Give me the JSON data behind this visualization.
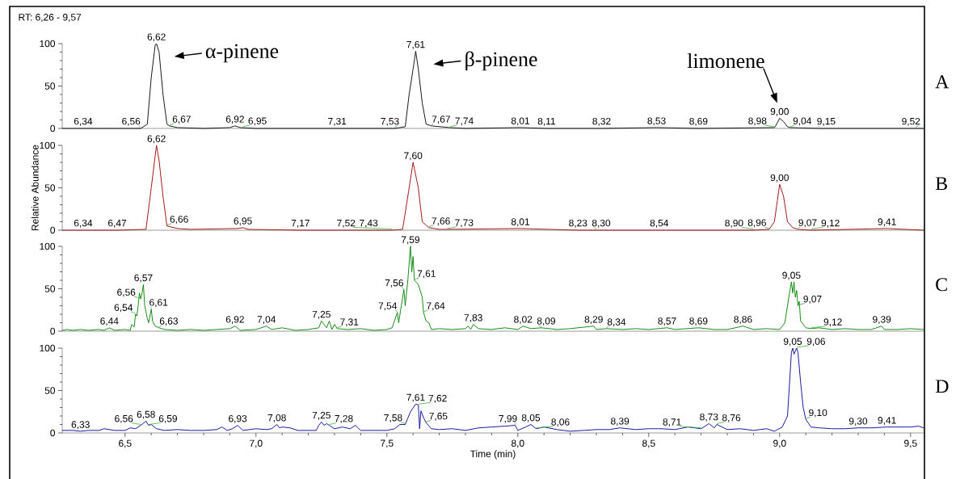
{
  "chart_data": [
    {
      "type": "line",
      "subtitle": "RT: 6,26 - 9,57",
      "color": "#000000",
      "xlim": [
        6.26,
        9.55
      ],
      "ylim": [
        0,
        100
      ],
      "yticks": [
        0,
        50,
        100
      ],
      "tick_labels": "y",
      "x": [
        6.26,
        6.34,
        6.5,
        6.56,
        6.585,
        6.6,
        6.615,
        6.62,
        6.63,
        6.645,
        6.66,
        6.67,
        6.7,
        6.8,
        6.9,
        6.92,
        6.94,
        7.0,
        7.31,
        7.53,
        7.57,
        7.585,
        7.6,
        7.61,
        7.62,
        7.635,
        7.65,
        7.67,
        7.74,
        7.8,
        8.01,
        8.11,
        8.32,
        8.53,
        8.69,
        8.98,
        8.985,
        9.0,
        9.015,
        9.03,
        9.04,
        9.15,
        9.52,
        9.55
      ],
      "values": [
        0,
        0,
        0,
        0,
        5,
        60,
        98,
        100,
        90,
        40,
        5,
        3,
        1,
        0,
        1,
        3,
        1,
        0,
        0,
        0,
        2,
        40,
        70,
        91,
        70,
        30,
        5,
        3,
        1,
        0,
        1,
        0,
        0,
        1,
        0,
        1,
        3,
        12,
        8,
        2,
        1,
        0,
        0,
        0
      ],
      "annotations": [
        "A",
        {
          "text": "α-pinene",
          "x": 6.62,
          "y": 100
        },
        {
          "text": "β-pinene",
          "x": 7.61,
          "y": 91
        },
        {
          "text": "limonene",
          "x": 9.0,
          "y": 12
        },
        {
          "text": "6,34",
          "x": 6.34,
          "y": 0.5
        },
        {
          "text": "6,56",
          "x": 6.56,
          "y": 0.5
        },
        {
          "text": "6,62",
          "x": 6.62,
          "y": 100
        },
        {
          "text": "6,67",
          "x": 6.67,
          "y": 3
        },
        {
          "text": "6,92",
          "x": 6.92,
          "y": 3
        },
        {
          "text": "6,95",
          "x": 6.95,
          "y": 1
        },
        {
          "text": "7,31",
          "x": 7.31,
          "y": 0.5
        },
        {
          "text": "7,53",
          "x": 7.53,
          "y": 0.5
        },
        {
          "text": "7,61",
          "x": 7.61,
          "y": 91
        },
        {
          "text": "7,67",
          "x": 7.67,
          "y": 3
        },
        {
          "text": "7,74",
          "x": 7.74,
          "y": 1
        },
        {
          "text": "8,01",
          "x": 8.01,
          "y": 1
        },
        {
          "text": "8,11",
          "x": 8.11,
          "y": 0.5
        },
        {
          "text": "8,32",
          "x": 8.32,
          "y": 0.5
        },
        {
          "text": "8,53",
          "x": 8.53,
          "y": 1
        },
        {
          "text": "8,69",
          "x": 8.69,
          "y": 0.5
        },
        {
          "text": "8,98",
          "x": 8.98,
          "y": 1
        },
        {
          "text": "9,00",
          "x": 9.0,
          "y": 12
        },
        {
          "text": "9,04",
          "x": 9.04,
          "y": 1
        },
        {
          "text": "9,15",
          "x": 9.15,
          "y": 0.5
        },
        {
          "text": "9,52",
          "x": 9.52,
          "y": 0.5
        }
      ]
    },
    {
      "type": "line",
      "ylabel": "Relative Abundance",
      "color": "#990000",
      "xlim": [
        6.26,
        9.55
      ],
      "ylim": [
        0,
        100
      ],
      "yticks": [
        0,
        50,
        100
      ],
      "tick_labels": "y",
      "x": [
        6.26,
        6.47,
        6.58,
        6.6,
        6.62,
        6.63,
        6.645,
        6.66,
        6.7,
        6.75,
        6.93,
        6.95,
        6.97,
        7.17,
        7.43,
        7.52,
        7.56,
        7.58,
        7.6,
        7.62,
        7.635,
        7.66,
        7.7,
        7.73,
        8.01,
        8.23,
        8.3,
        8.54,
        8.9,
        8.96,
        8.98,
        9.0,
        9.015,
        9.03,
        9.05,
        9.07,
        9.12,
        9.41,
        9.55
      ],
      "values": [
        0,
        0,
        1,
        50,
        100,
        82,
        40,
        5,
        2,
        1,
        2,
        3,
        1,
        0,
        0,
        0,
        1,
        40,
        80,
        50,
        10,
        3,
        1,
        1,
        2,
        0,
        0,
        0,
        0,
        1,
        10,
        54,
        40,
        10,
        3,
        1,
        0,
        2,
        0
      ],
      "annotations": [
        "B",
        {
          "text": "6,34",
          "x": 6.34,
          "y": 0.5
        },
        {
          "text": "6,47",
          "x": 6.47,
          "y": 0.5
        },
        {
          "text": "6,62",
          "x": 6.62,
          "y": 100
        },
        {
          "text": "6,66",
          "x": 6.66,
          "y": 5
        },
        {
          "text": "6,95",
          "x": 6.95,
          "y": 3
        },
        {
          "text": "7,17",
          "x": 7.17,
          "y": 0.5
        },
        {
          "text": "7,43",
          "x": 7.43,
          "y": 0.5
        },
        {
          "text": "7,52",
          "x": 7.52,
          "y": 0.5
        },
        {
          "text": "7,60",
          "x": 7.6,
          "y": 80
        },
        {
          "text": "7,66",
          "x": 7.66,
          "y": 3
        },
        {
          "text": "7,73",
          "x": 7.73,
          "y": 1
        },
        {
          "text": "8,01",
          "x": 8.01,
          "y": 2
        },
        {
          "text": "8,23",
          "x": 8.23,
          "y": 0.5
        },
        {
          "text": "8,30",
          "x": 8.3,
          "y": 0.5
        },
        {
          "text": "8,54",
          "x": 8.54,
          "y": 0.5
        },
        {
          "text": "8,90",
          "x": 8.9,
          "y": 0.5
        },
        {
          "text": "8,96",
          "x": 8.96,
          "y": 1
        },
        {
          "text": "9,00",
          "x": 9.0,
          "y": 54
        },
        {
          "text": "9,07",
          "x": 9.07,
          "y": 1
        },
        {
          "text": "9,12",
          "x": 9.12,
          "y": 0.5
        },
        {
          "text": "9,41",
          "x": 9.41,
          "y": 2
        }
      ]
    },
    {
      "type": "line",
      "color": "#008000",
      "xlim": [
        6.26,
        9.55
      ],
      "ylim": [
        0,
        100
      ],
      "yticks": [
        0,
        50,
        100
      ],
      "tick_labels": "y",
      "x": [
        6.26,
        6.28,
        6.3,
        6.33,
        6.36,
        6.4,
        6.42,
        6.44,
        6.46,
        6.5,
        6.52,
        6.525,
        6.535,
        6.54,
        6.545,
        6.55,
        6.555,
        6.56,
        6.565,
        6.57,
        6.575,
        6.585,
        6.59,
        6.6,
        6.605,
        6.615,
        6.63,
        6.65,
        6.7,
        6.75,
        6.8,
        6.85,
        6.9,
        6.92,
        6.94,
        7.0,
        7.04,
        7.06,
        7.1,
        7.15,
        7.2,
        7.24,
        7.25,
        7.27,
        7.28,
        7.29,
        7.3,
        7.31,
        7.35,
        7.4,
        7.45,
        7.5,
        7.52,
        7.54,
        7.545,
        7.555,
        7.565,
        7.57,
        7.58,
        7.59,
        7.595,
        7.6,
        7.605,
        7.62,
        7.635,
        7.64,
        7.65,
        7.66,
        7.67,
        7.7,
        7.75,
        7.8,
        7.81,
        7.82,
        7.83,
        7.85,
        7.9,
        7.95,
        8.0,
        8.02,
        8.05,
        8.09,
        8.15,
        8.2,
        8.29,
        8.3,
        8.34,
        8.4,
        8.45,
        8.5,
        8.57,
        8.6,
        8.69,
        8.75,
        8.8,
        8.86,
        8.9,
        8.95,
        9.0,
        9.02,
        9.035,
        9.045,
        9.05,
        9.055,
        9.06,
        9.065,
        9.07,
        9.075,
        9.08,
        9.09,
        9.1,
        9.12,
        9.15,
        9.2,
        9.25,
        9.3,
        9.35,
        9.39,
        9.4,
        9.45,
        9.5,
        9.55
      ],
      "values": [
        1,
        2,
        1,
        2,
        1,
        2,
        1,
        4,
        1,
        2,
        1,
        8,
        5,
        20,
        18,
        30,
        45,
        38,
        45,
        55,
        30,
        15,
        10,
        26,
        12,
        6,
        4,
        2,
        1,
        2,
        1,
        2,
        3,
        6,
        1,
        2,
        6,
        2,
        4,
        1,
        2,
        4,
        12,
        4,
        12,
        2,
        8,
        3,
        2,
        3,
        1,
        2,
        4,
        22,
        10,
        30,
        49,
        30,
        60,
        100,
        70,
        88,
        60,
        55,
        40,
        22,
        12,
        10,
        2,
        3,
        2,
        3,
        6,
        2,
        8,
        3,
        2,
        4,
        2,
        6,
        3,
        4,
        2,
        3,
        6,
        2,
        3,
        2,
        3,
        2,
        4,
        2,
        4,
        2,
        2,
        6,
        2,
        3,
        2,
        10,
        40,
        58,
        45,
        58,
        40,
        48,
        30,
        35,
        12,
        8,
        4,
        3,
        4,
        2,
        3,
        2,
        2,
        6,
        2,
        2,
        3,
        2
      ],
      "annotations": [
        "C",
        {
          "text": "6,44",
          "x": 6.44,
          "y": 4
        },
        {
          "text": "6,54",
          "x": 6.54,
          "y": 20
        },
        {
          "text": "6,56",
          "x": 6.56,
          "y": 38
        },
        {
          "text": "6,57",
          "x": 6.57,
          "y": 55
        },
        {
          "text": "6,61",
          "x": 6.6,
          "y": 26
        },
        {
          "text": "6,63",
          "x": 6.63,
          "y": 4
        },
        {
          "text": "6,92",
          "x": 6.92,
          "y": 6
        },
        {
          "text": "7,04",
          "x": 7.04,
          "y": 6
        },
        {
          "text": "7,25",
          "x": 7.25,
          "y": 12
        },
        {
          "text": "7,31",
          "x": 7.31,
          "y": 3
        },
        {
          "text": "7,54",
          "x": 7.54,
          "y": 22
        },
        {
          "text": "7,56",
          "x": 7.565,
          "y": 49
        },
        {
          "text": "7,59",
          "x": 7.59,
          "y": 100
        },
        {
          "text": "7,61",
          "x": 7.605,
          "y": 60
        },
        {
          "text": "7,64",
          "x": 7.64,
          "y": 22
        },
        {
          "text": "7,83",
          "x": 7.83,
          "y": 8
        },
        {
          "text": "8,02",
          "x": 8.02,
          "y": 6
        },
        {
          "text": "8,09",
          "x": 8.09,
          "y": 4
        },
        {
          "text": "8,29",
          "x": 8.29,
          "y": 6
        },
        {
          "text": "8,34",
          "x": 8.34,
          "y": 3
        },
        {
          "text": "8,57",
          "x": 8.57,
          "y": 4
        },
        {
          "text": "8,69",
          "x": 8.69,
          "y": 4
        },
        {
          "text": "8,86",
          "x": 8.86,
          "y": 6
        },
        {
          "text": "9,05",
          "x": 9.045,
          "y": 58
        },
        {
          "text": "9,07",
          "x": 9.07,
          "y": 30
        },
        {
          "text": "9,12",
          "x": 9.12,
          "y": 3
        },
        {
          "text": "9,39",
          "x": 9.39,
          "y": 6
        }
      ]
    },
    {
      "type": "line",
      "xlabel": "Time (min)",
      "color": "#000099",
      "xlim": [
        6.26,
        9.55
      ],
      "ylim": [
        0,
        100
      ],
      "yticks": [
        0,
        50,
        100
      ],
      "xticks": [
        {
          "value": 6.5,
          "label": "6,5"
        },
        {
          "value": 7.0,
          "label": "7,0"
        },
        {
          "value": 7.5,
          "label": "7,5"
        },
        {
          "value": 8.0,
          "label": "8,0"
        },
        {
          "value": 8.5,
          "label": "8,5"
        },
        {
          "value": 9.0,
          "label": "9,0"
        },
        {
          "value": 9.5,
          "label": "9,5"
        }
      ],
      "x": [
        6.26,
        6.3,
        6.33,
        6.36,
        6.4,
        6.42,
        6.44,
        6.46,
        6.5,
        6.52,
        6.54,
        6.56,
        6.58,
        6.59,
        6.6,
        6.62,
        6.65,
        6.7,
        6.75,
        6.8,
        6.85,
        6.87,
        6.89,
        6.91,
        6.93,
        6.95,
        7.0,
        7.04,
        7.06,
        7.08,
        7.09,
        7.1,
        7.13,
        7.16,
        7.2,
        7.23,
        7.24,
        7.25,
        7.26,
        7.27,
        7.28,
        7.3,
        7.33,
        7.36,
        7.38,
        7.4,
        7.45,
        7.5,
        7.53,
        7.55,
        7.57,
        7.59,
        7.61,
        7.62,
        7.625,
        7.63,
        7.64,
        7.65,
        7.67,
        7.7,
        7.75,
        7.8,
        7.85,
        7.9,
        7.95,
        7.99,
        8.0,
        8.03,
        8.05,
        8.07,
        8.1,
        8.15,
        8.2,
        8.25,
        8.3,
        8.35,
        8.39,
        8.45,
        8.5,
        8.55,
        8.6,
        8.65,
        8.7,
        8.73,
        8.75,
        8.76,
        8.8,
        8.85,
        8.9,
        8.95,
        8.98,
        9.01,
        9.03,
        9.045,
        9.05,
        9.055,
        9.065,
        9.07,
        9.08,
        9.09,
        9.1,
        9.12,
        9.15,
        9.2,
        9.25,
        9.3,
        9.35,
        9.41,
        9.45,
        9.5,
        9.53,
        9.55
      ],
      "values": [
        3,
        3,
        2,
        3,
        3,
        5,
        4,
        3,
        3,
        6,
        5,
        9,
        14,
        9,
        10,
        5,
        3,
        4,
        3,
        3,
        4,
        7,
        3,
        5,
        9,
        3,
        5,
        4,
        5,
        10,
        6,
        7,
        6,
        3,
        3,
        3,
        9,
        13,
        9,
        11,
        9,
        5,
        7,
        5,
        9,
        3,
        3,
        3,
        5,
        10,
        10,
        25,
        34,
        33,
        5,
        26,
        18,
        12,
        5,
        4,
        5,
        3,
        6,
        7,
        8,
        9,
        3,
        7,
        10,
        5,
        7,
        4,
        2,
        3,
        4,
        4,
        6,
        4,
        5,
        5,
        4,
        7,
        5,
        11,
        6,
        10,
        4,
        5,
        3,
        5,
        2,
        7,
        20,
        95,
        100,
        93,
        100,
        95,
        60,
        30,
        16,
        7,
        6,
        5,
        5,
        6,
        6,
        7,
        7,
        7,
        8,
        6
      ],
      "annotations": [
        "D",
        {
          "text": "6,33",
          "x": 6.33,
          "y": 2
        },
        {
          "text": "6,56",
          "x": 6.56,
          "y": 9
        },
        {
          "text": "6,58",
          "x": 6.58,
          "y": 14
        },
        {
          "text": "6,59",
          "x": 6.59,
          "y": 9
        },
        {
          "text": "6,93",
          "x": 6.93,
          "y": 9
        },
        {
          "text": "7,08",
          "x": 7.08,
          "y": 10
        },
        {
          "text": "7,25",
          "x": 7.25,
          "y": 13
        },
        {
          "text": "7,28",
          "x": 7.28,
          "y": 9
        },
        {
          "text": "7,58",
          "x": 7.57,
          "y": 10
        },
        {
          "text": "7,61",
          "x": 7.61,
          "y": 34
        },
        {
          "text": "7,62",
          "x": 7.62,
          "y": 33
        },
        {
          "text": "7,65",
          "x": 7.65,
          "y": 12
        },
        {
          "text": "7,99",
          "x": 7.99,
          "y": 9
        },
        {
          "text": "8,05",
          "x": 8.05,
          "y": 10
        },
        {
          "text": "8,06",
          "x": 8.07,
          "y": 5
        },
        {
          "text": "8,39",
          "x": 8.39,
          "y": 6
        },
        {
          "text": "8,71",
          "x": 8.7,
          "y": 5
        },
        {
          "text": "8,73",
          "x": 8.73,
          "y": 11
        },
        {
          "text": "8,76",
          "x": 8.76,
          "y": 10
        },
        {
          "text": "9,05",
          "x": 9.05,
          "y": 100
        },
        {
          "text": "9,06",
          "x": 9.065,
          "y": 100
        },
        {
          "text": "9,10",
          "x": 9.1,
          "y": 16
        },
        {
          "text": "9,30",
          "x": 9.3,
          "y": 6
        },
        {
          "text": "9,41",
          "x": 9.41,
          "y": 7
        }
      ]
    }
  ]
}
